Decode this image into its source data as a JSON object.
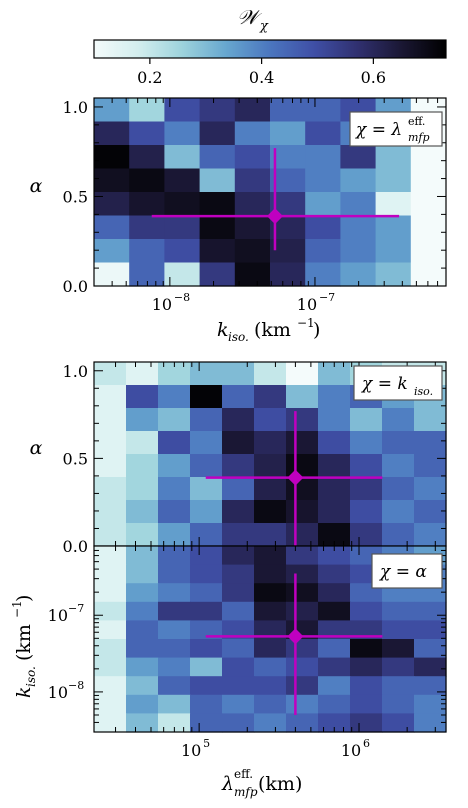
{
  "colorbar": {
    "label": "𝒲",
    "label_sub": "χ",
    "ticks": [
      "0.2",
      "0.4",
      "0.6"
    ],
    "tick_values": [
      0.2,
      0.4,
      0.6
    ],
    "range": [
      0.1,
      0.73
    ],
    "colormap": [
      "#f4fbfb",
      "#d3eeee",
      "#9dd3dc",
      "#67a7cf",
      "#4b76bf",
      "#3f4fa6",
      "#30306f",
      "#1a1733",
      "#000000"
    ]
  },
  "marker_color": "#c000c0",
  "chart_data": [
    {
      "type": "heatmap",
      "panel": "top",
      "legend_text": "χ = λmfp^eff.",
      "legend_main": "χ = λ",
      "legend_sub": "mfp",
      "legend_sup": "eff.",
      "xlabel_main": "k",
      "xlabel_sub": "iso.",
      "xlabel_rest": " (km",
      "xlabel_sup": "−1",
      "xlabel_close": ")",
      "ylabel": "α",
      "x_scale": "log",
      "x_range": [
        3e-09,
        8e-07
      ],
      "x_ticks": [
        "10^-8",
        "10^-7"
      ],
      "x_tick_labels": [
        "10",
        "10"
      ],
      "x_tick_sups": [
        "−8",
        "−7"
      ],
      "y_range": [
        0.0,
        1.05
      ],
      "y_ticks": [
        "0.0",
        "0.5",
        "1.0"
      ],
      "cols": 10,
      "rows": 8,
      "values": [
        [
          0.35,
          0.25,
          0.5,
          0.55,
          0.6,
          0.45,
          0.45,
          0.5,
          0.35,
          0.1
        ],
        [
          0.6,
          0.5,
          0.4,
          0.6,
          0.4,
          0.35,
          0.5,
          0.4,
          0.45,
          0.1
        ],
        [
          0.72,
          0.62,
          0.3,
          0.45,
          0.5,
          0.4,
          0.4,
          0.55,
          0.3,
          0.1
        ],
        [
          0.68,
          0.7,
          0.65,
          0.3,
          0.55,
          0.45,
          0.4,
          0.35,
          0.3,
          0.1
        ],
        [
          0.62,
          0.66,
          0.68,
          0.7,
          0.6,
          0.55,
          0.35,
          0.4,
          0.15,
          0.1
        ],
        [
          0.45,
          0.55,
          0.55,
          0.7,
          0.65,
          0.6,
          0.5,
          0.4,
          0.35,
          0.1
        ],
        [
          0.35,
          0.45,
          0.5,
          0.66,
          0.68,
          0.62,
          0.45,
          0.4,
          0.35,
          0.1
        ],
        [
          0.12,
          0.45,
          0.2,
          0.55,
          0.7,
          0.6,
          0.4,
          0.35,
          0.3,
          0.1
        ]
      ],
      "point": {
        "x": 5.3e-08,
        "y": 0.39,
        "xerr": [
          7.5e-09,
          3.8e-07
        ],
        "yerr": [
          0.2,
          0.77
        ]
      }
    },
    {
      "type": "heatmap",
      "panel": "middle",
      "legend_text": "χ = k_iso.",
      "legend_main": "χ = k",
      "legend_sub": "iso.",
      "ylabel": "α",
      "x_scale": "log",
      "x_range": [
        22000.0,
        3500000.0
      ],
      "y_range": [
        0.0,
        1.05
      ],
      "y_ticks": [
        "0.0",
        "0.5",
        "1.0"
      ],
      "cols": 11,
      "rows": 8,
      "values": [
        [
          0.2,
          0.15,
          0.25,
          0.3,
          0.3,
          0.2,
          0.1,
          0.3,
          0.25,
          0.2,
          0.2
        ],
        [
          0.15,
          0.5,
          0.4,
          0.72,
          0.45,
          0.55,
          0.3,
          0.4,
          0.45,
          0.35,
          0.3
        ],
        [
          0.15,
          0.35,
          0.3,
          0.45,
          0.6,
          0.5,
          0.55,
          0.4,
          0.3,
          0.4,
          0.3
        ],
        [
          0.15,
          0.2,
          0.5,
          0.4,
          0.65,
          0.6,
          0.65,
          0.5,
          0.4,
          0.45,
          0.45
        ],
        [
          0.15,
          0.25,
          0.35,
          0.45,
          0.55,
          0.62,
          0.7,
          0.6,
          0.5,
          0.4,
          0.45
        ],
        [
          0.2,
          0.25,
          0.4,
          0.3,
          0.45,
          0.62,
          0.68,
          0.6,
          0.55,
          0.45,
          0.4
        ],
        [
          0.2,
          0.3,
          0.45,
          0.35,
          0.6,
          0.7,
          0.66,
          0.6,
          0.5,
          0.4,
          0.45
        ],
        [
          0.2,
          0.25,
          0.35,
          0.45,
          0.55,
          0.55,
          0.6,
          0.7,
          0.55,
          0.45,
          0.4
        ]
      ],
      "point": {
        "x": 400000.0,
        "y": 0.39,
        "xerr": [
          110000.0,
          1400000.0
        ],
        "yerr": [
          0.0,
          0.77
        ]
      }
    },
    {
      "type": "heatmap",
      "panel": "bottom",
      "legend_text": "χ = α",
      "legend_main": "χ = α",
      "xlabel_main": "λ",
      "xlabel_sub": "mfp",
      "xlabel_sup": "eff.",
      "xlabel_rest": " (km)",
      "ylabel_main": "k",
      "ylabel_sub": "iso.",
      "ylabel_rest": " (km",
      "ylabel_sup": "−1",
      "ylabel_close": ")",
      "x_scale": "log",
      "x_range": [
        22000.0,
        3500000.0
      ],
      "x_ticks": [
        "10^5",
        "10^6"
      ],
      "x_tick_labels": [
        "10",
        "10"
      ],
      "x_tick_sups": [
        "5",
        "6"
      ],
      "y_scale": "log",
      "y_range": [
        3e-09,
        8e-07
      ],
      "y_ticks": [
        "10^-8",
        "10^-7"
      ],
      "y_tick_labels": [
        "10",
        "10"
      ],
      "y_tick_sups": [
        "−8",
        "−7"
      ],
      "cols": 11,
      "rows": 10,
      "values": [
        [
          0.15,
          0.3,
          0.45,
          0.5,
          0.6,
          0.65,
          0.55,
          0.5,
          0.45,
          0.4,
          0.35
        ],
        [
          0.15,
          0.3,
          0.45,
          0.5,
          0.55,
          0.65,
          0.62,
          0.55,
          0.5,
          0.45,
          0.4
        ],
        [
          0.15,
          0.35,
          0.4,
          0.45,
          0.55,
          0.7,
          0.68,
          0.6,
          0.45,
          0.4,
          0.4
        ],
        [
          0.2,
          0.4,
          0.55,
          0.55,
          0.45,
          0.65,
          0.62,
          0.68,
          0.5,
          0.45,
          0.45
        ],
        [
          0.15,
          0.45,
          0.4,
          0.45,
          0.5,
          0.6,
          0.65,
          0.55,
          0.55,
          0.5,
          0.5
        ],
        [
          0.2,
          0.45,
          0.45,
          0.5,
          0.45,
          0.6,
          0.55,
          0.45,
          0.7,
          0.65,
          0.45
        ],
        [
          0.2,
          0.35,
          0.4,
          0.3,
          0.5,
          0.45,
          0.5,
          0.55,
          0.6,
          0.55,
          0.6
        ],
        [
          0.15,
          0.3,
          0.45,
          0.5,
          0.5,
          0.5,
          0.55,
          0.4,
          0.5,
          0.45,
          0.45
        ],
        [
          0.15,
          0.35,
          0.3,
          0.45,
          0.4,
          0.45,
          0.4,
          0.45,
          0.5,
          0.45,
          0.4
        ],
        [
          0.15,
          0.3,
          0.2,
          0.45,
          0.45,
          0.4,
          0.45,
          0.5,
          0.55,
          0.5,
          0.4
        ]
      ],
      "point": {
        "x": 400000.0,
        "y": 5.3e-08,
        "xerr": [
          110000.0,
          1400000.0
        ],
        "yerr": [
          5e-09,
          3.5e-07
        ]
      }
    }
  ]
}
